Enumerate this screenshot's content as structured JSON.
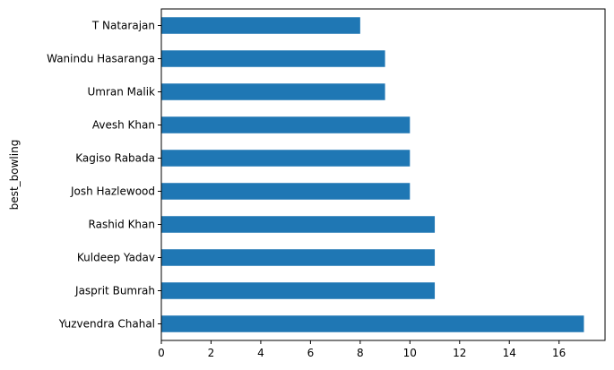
{
  "chart_data": {
    "type": "bar",
    "orientation": "horizontal",
    "categories": [
      "Yuzvendra Chahal",
      "Jasprit Bumrah",
      "Kuldeep Yadav",
      "Rashid Khan",
      "Josh Hazlewood",
      "Kagiso Rabada",
      "Avesh Khan",
      "Umran Malik",
      "Wanindu Hasaranga",
      "T Natarajan"
    ],
    "values": [
      17,
      11,
      11,
      11,
      10,
      10,
      10,
      9,
      9,
      8
    ],
    "title": "",
    "xlabel": "",
    "ylabel": "best_bowling",
    "xlim": [
      0,
      17.85
    ],
    "xticks": [
      0,
      2,
      4,
      6,
      8,
      10,
      12,
      14,
      16
    ],
    "grid": false,
    "legend": "none",
    "bar_color": "#1f77b4"
  }
}
